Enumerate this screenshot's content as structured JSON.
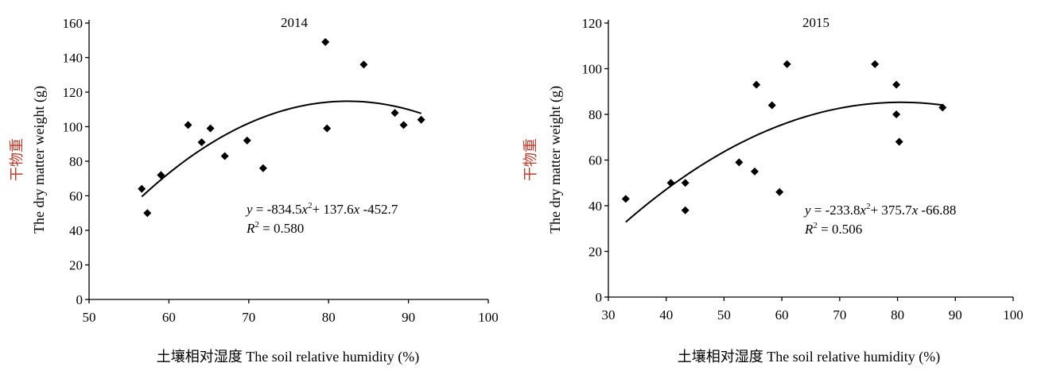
{
  "chart_data": [
    {
      "type": "scatter",
      "title": "2014",
      "xlabel": "土壤相对湿度 The soil relative humidity (%)",
      "ylabel_cn": "干物重",
      "ylabel": "The dry matter weight (g)",
      "xlim": [
        50,
        100
      ],
      "ylim": [
        0,
        160
      ],
      "xticks": [
        50,
        60,
        70,
        80,
        90,
        100
      ],
      "yticks": [
        0,
        20,
        40,
        60,
        80,
        100,
        120,
        140,
        160
      ],
      "grid": false,
      "points": [
        {
          "x": 56.6,
          "y": 64
        },
        {
          "x": 57.3,
          "y": 50
        },
        {
          "x": 59.0,
          "y": 72
        },
        {
          "x": 62.4,
          "y": 101
        },
        {
          "x": 64.1,
          "y": 91
        },
        {
          "x": 65.2,
          "y": 99
        },
        {
          "x": 67.0,
          "y": 83
        },
        {
          "x": 69.8,
          "y": 92
        },
        {
          "x": 71.8,
          "y": 76
        },
        {
          "x": 79.6,
          "y": 149
        },
        {
          "x": 79.8,
          "y": 99
        },
        {
          "x": 84.4,
          "y": 136
        },
        {
          "x": 88.3,
          "y": 108
        },
        {
          "x": 89.4,
          "y": 101
        },
        {
          "x": 91.6,
          "y": 104
        }
      ],
      "trend": {
        "type": "polynomial",
        "x_range": [
          56.6,
          91.6
        ]
      },
      "annotations": {
        "equation": {
          "y": "y",
          "eq": " = -834.5",
          "x1": "x",
          "sup": "2",
          "rest1": "+ 137.6",
          "x2": "x",
          "rest2": " -452.7"
        },
        "r2": {
          "r": "R",
          "sup": "2",
          "val": " = 0.580"
        }
      }
    },
    {
      "type": "scatter",
      "title": "2015",
      "xlabel": "土壤相对湿度 The soil relative humidity (%)",
      "ylabel_cn": "干物重",
      "ylabel": "The dry matter weight (g)",
      "xlim": [
        30,
        100
      ],
      "ylim": [
        0,
        120
      ],
      "xticks": [
        30,
        40,
        50,
        60,
        70,
        80,
        90,
        100
      ],
      "yticks": [
        0,
        20,
        40,
        60,
        80,
        100,
        120
      ],
      "grid": false,
      "points": [
        {
          "x": 33.0,
          "y": 43
        },
        {
          "x": 40.8,
          "y": 50
        },
        {
          "x": 43.3,
          "y": 50
        },
        {
          "x": 43.3,
          "y": 38
        },
        {
          "x": 52.6,
          "y": 59
        },
        {
          "x": 55.3,
          "y": 55
        },
        {
          "x": 55.6,
          "y": 93
        },
        {
          "x": 58.3,
          "y": 84
        },
        {
          "x": 59.6,
          "y": 46
        },
        {
          "x": 60.9,
          "y": 102
        },
        {
          "x": 76.1,
          "y": 102
        },
        {
          "x": 79.8,
          "y": 93
        },
        {
          "x": 79.8,
          "y": 80
        },
        {
          "x": 80.3,
          "y": 68
        },
        {
          "x": 87.8,
          "y": 83
        }
      ],
      "trend": {
        "type": "polynomial",
        "x_range": [
          33.0,
          87.8
        ]
      },
      "annotations": {
        "equation": {
          "y": "y",
          "eq": " = -233.8",
          "x1": "x",
          "sup": "2",
          "rest1": "+ 375.7",
          "x2": "x",
          "rest2": " -66.88"
        },
        "r2": {
          "r": "R",
          "sup": "2",
          "val": " = 0.506"
        }
      }
    }
  ]
}
